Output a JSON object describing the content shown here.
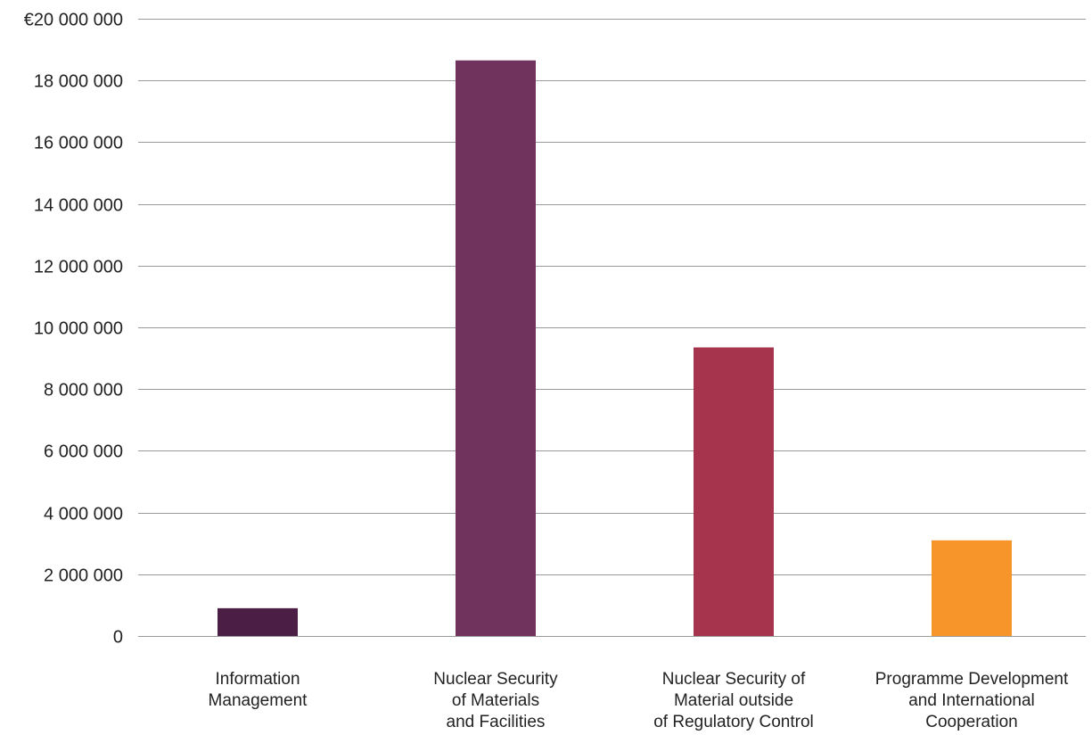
{
  "chart_data": {
    "type": "bar",
    "title": "",
    "xlabel": "",
    "ylabel": "",
    "ylim": [
      0,
      20000000
    ],
    "grid": true,
    "legend": "none",
    "y_ticks": [
      {
        "value": 0,
        "label": "0"
      },
      {
        "value": 2000000,
        "label": "2 000 000"
      },
      {
        "value": 4000000,
        "label": "4 000 000"
      },
      {
        "value": 6000000,
        "label": "6 000 000"
      },
      {
        "value": 8000000,
        "label": "8 000 000"
      },
      {
        "value": 10000000,
        "label": "10 000 000"
      },
      {
        "value": 12000000,
        "label": "12 000 000"
      },
      {
        "value": 14000000,
        "label": "14 000 000"
      },
      {
        "value": 16000000,
        "label": "16 000 000"
      },
      {
        "value": 18000000,
        "label": "18 000 000"
      },
      {
        "value": 20000000,
        "label": "€20 000 000"
      }
    ],
    "categories": [
      [
        "Information",
        "Management"
      ],
      [
        "Nuclear Security",
        "of Materials",
        "and Facilities"
      ],
      [
        "Nuclear Security of",
        "Material outside",
        "of Regulatory Control"
      ],
      [
        "Programme Development",
        "and International",
        "Cooperation"
      ]
    ],
    "values": [
      900000,
      18650000,
      9350000,
      3100000
    ],
    "colors": [
      "#4a1e45",
      "#70335d",
      "#a5344c",
      "#f7952b"
    ]
  }
}
